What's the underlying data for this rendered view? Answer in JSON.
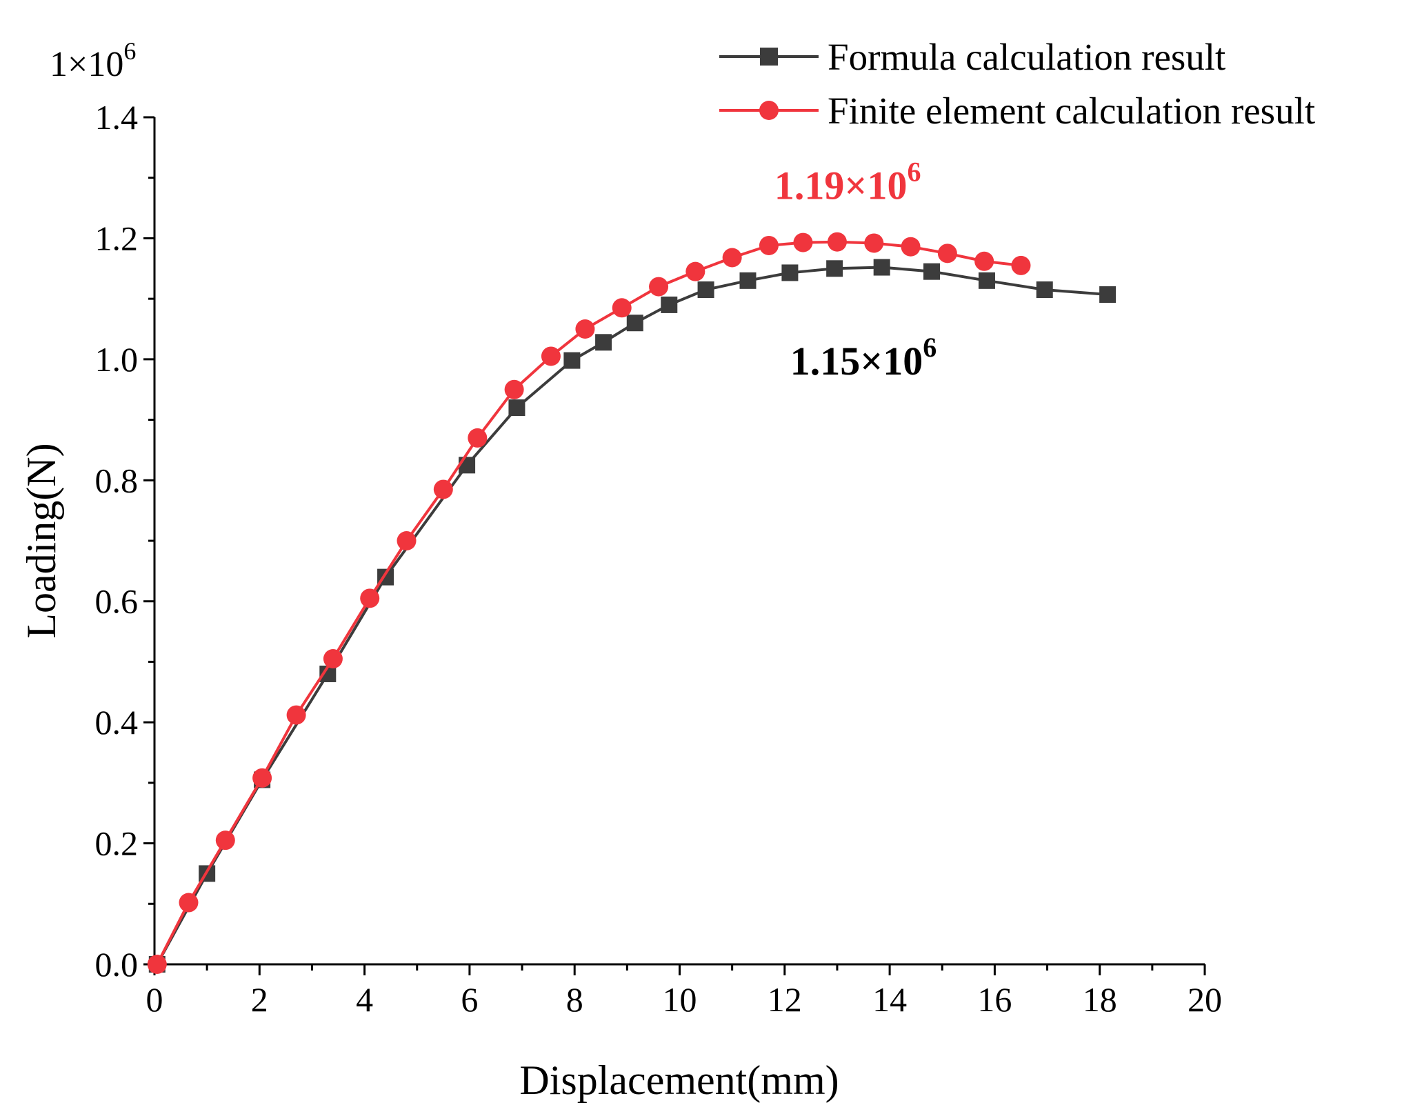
{
  "chart_data": {
    "type": "line",
    "title": "",
    "xlabel": "Displacement(mm)",
    "ylabel": "Loading(N)",
    "xlim": [
      0,
      20
    ],
    "ylim": [
      0,
      1.4
    ],
    "xticks": [
      "0",
      "2",
      "4",
      "6",
      "8",
      "10",
      "12",
      "14",
      "16",
      "18",
      "20"
    ],
    "yticks": [
      "0.0",
      "0.2",
      "0.4",
      "0.6",
      "0.8",
      "1.0",
      "1.2",
      "1.4"
    ],
    "y_multiplier": {
      "base": "1×10",
      "exponent": "6"
    },
    "legend_position": "top-right",
    "series": [
      {
        "name": "Formula calculation result",
        "color": "#3c3c3c",
        "marker": "square",
        "x": [
          0.05,
          1.0,
          2.05,
          3.3,
          4.4,
          5.95,
          6.9,
          7.95,
          8.55,
          9.15,
          9.8,
          10.5,
          11.3,
          12.1,
          12.95,
          13.85,
          14.8,
          15.85,
          16.95,
          18.15
        ],
        "y": [
          0.0,
          0.15,
          0.305,
          0.48,
          0.64,
          0.825,
          0.92,
          0.998,
          1.028,
          1.06,
          1.09,
          1.115,
          1.13,
          1.143,
          1.15,
          1.152,
          1.145,
          1.13,
          1.115,
          1.107
        ]
      },
      {
        "name": "Finite element calculation result",
        "color": "#f0353d",
        "marker": "circle",
        "x": [
          0.05,
          0.65,
          1.35,
          2.05,
          2.7,
          3.4,
          4.1,
          4.8,
          5.5,
          6.15,
          6.85,
          7.55,
          8.2,
          8.9,
          9.6,
          10.3,
          11.0,
          11.7,
          12.35,
          13.0,
          13.7,
          14.4,
          15.1,
          15.8,
          16.5
        ],
        "y": [
          0.0,
          0.102,
          0.205,
          0.308,
          0.412,
          0.505,
          0.605,
          0.7,
          0.785,
          0.87,
          0.95,
          1.005,
          1.05,
          1.085,
          1.12,
          1.145,
          1.168,
          1.188,
          1.193,
          1.194,
          1.192,
          1.186,
          1.175,
          1.162,
          1.155
        ]
      }
    ],
    "annotations": [
      {
        "base": "1.19×10",
        "exponent": "6",
        "color": "#f0353d",
        "x": 13.2,
        "y": 1.265
      },
      {
        "base": "1.15×10",
        "exponent": "6",
        "color": "#000000",
        "x": 13.5,
        "y": 0.975
      }
    ]
  }
}
